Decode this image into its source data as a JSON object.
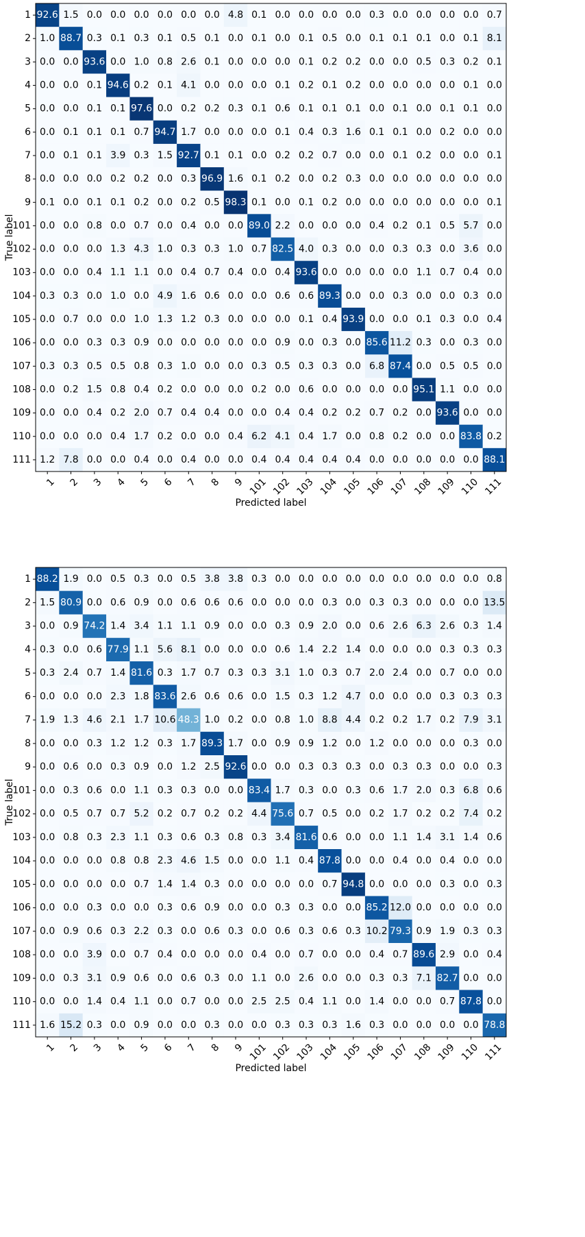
{
  "chart_data": [
    {
      "type": "heatmap",
      "title": "",
      "xlabel": "Predicted label",
      "ylabel": "True label",
      "colormap": "Blues",
      "color_range": [
        0,
        100
      ],
      "text_color_dark_cells": "#ffffff",
      "text_color_light_cells": "#000000",
      "x_categories": [
        "1",
        "2",
        "3",
        "4",
        "5",
        "6",
        "7",
        "8",
        "9",
        "101",
        "102",
        "103",
        "104",
        "105",
        "106",
        "107",
        "108",
        "109",
        "110",
        "111"
      ],
      "y_categories": [
        "1",
        "2",
        "3",
        "4",
        "5",
        "6",
        "7",
        "8",
        "9",
        "101",
        "102",
        "103",
        "104",
        "105",
        "106",
        "107",
        "108",
        "109",
        "110",
        "111"
      ],
      "values": [
        [
          "92.6",
          "1.5",
          "0.0",
          "0.0",
          "0.0",
          "0.0",
          "0.0",
          "0.0",
          "4.8",
          "0.1",
          "0.0",
          "0.0",
          "0.0",
          "0.0",
          "0.3",
          "0.0",
          "0.0",
          "0.0",
          "0.0",
          "0.7"
        ],
        [
          "1.0",
          "88.7",
          "0.3",
          "0.1",
          "0.3",
          "0.1",
          "0.5",
          "0.1",
          "0.0",
          "0.1",
          "0.0",
          "0.1",
          "0.5",
          "0.0",
          "0.1",
          "0.1",
          "0.1",
          "0.0",
          "0.1",
          "8.1"
        ],
        [
          "0.0",
          "0.0",
          "93.6",
          "0.0",
          "1.0",
          "0.8",
          "2.6",
          "0.1",
          "0.0",
          "0.0",
          "0.0",
          "0.1",
          "0.2",
          "0.2",
          "0.0",
          "0.0",
          "0.5",
          "0.3",
          "0.2",
          "0.1"
        ],
        [
          "0.0",
          "0.0",
          "0.1",
          "94.6",
          "0.2",
          "0.1",
          "4.1",
          "0.0",
          "0.0",
          "0.0",
          "0.1",
          "0.2",
          "0.1",
          "0.2",
          "0.0",
          "0.0",
          "0.0",
          "0.0",
          "0.1",
          "0.0"
        ],
        [
          "0.0",
          "0.0",
          "0.1",
          "0.1",
          "97.6",
          "0.0",
          "0.2",
          "0.2",
          "0.3",
          "0.1",
          "0.6",
          "0.1",
          "0.1",
          "0.1",
          "0.0",
          "0.1",
          "0.0",
          "0.1",
          "0.1",
          "0.0"
        ],
        [
          "0.0",
          "0.1",
          "0.1",
          "0.1",
          "0.7",
          "94.7",
          "1.7",
          "0.0",
          "0.0",
          "0.0",
          "0.1",
          "0.4",
          "0.3",
          "1.6",
          "0.1",
          "0.1",
          "0.0",
          "0.2",
          "0.0",
          "0.0"
        ],
        [
          "0.0",
          "0.1",
          "0.1",
          "3.9",
          "0.3",
          "1.5",
          "92.7",
          "0.1",
          "0.1",
          "0.0",
          "0.2",
          "0.2",
          "0.7",
          "0.0",
          "0.0",
          "0.1",
          "0.2",
          "0.0",
          "0.0",
          "0.1"
        ],
        [
          "0.0",
          "0.0",
          "0.0",
          "0.2",
          "0.2",
          "0.0",
          "0.3",
          "96.9",
          "1.6",
          "0.1",
          "0.2",
          "0.0",
          "0.2",
          "0.3",
          "0.0",
          "0.0",
          "0.0",
          "0.0",
          "0.0",
          "0.0"
        ],
        [
          "0.1",
          "0.0",
          "0.1",
          "0.1",
          "0.2",
          "0.0",
          "0.2",
          "0.5",
          "98.3",
          "0.1",
          "0.0",
          "0.1",
          "0.2",
          "0.0",
          "0.0",
          "0.0",
          "0.0",
          "0.0",
          "0.0",
          "0.1"
        ],
        [
          "0.0",
          "0.0",
          "0.8",
          "0.0",
          "0.7",
          "0.0",
          "0.4",
          "0.0",
          "0.0",
          "89.0",
          "2.2",
          "0.0",
          "0.0",
          "0.0",
          "0.4",
          "0.2",
          "0.1",
          "0.5",
          "5.7",
          "0.0"
        ],
        [
          "0.0",
          "0.0",
          "0.0",
          "1.3",
          "4.3",
          "1.0",
          "0.3",
          "0.3",
          "1.0",
          "0.7",
          "82.5",
          "4.0",
          "0.3",
          "0.0",
          "0.0",
          "0.3",
          "0.3",
          "0.0",
          "3.6",
          "0.0"
        ],
        [
          "0.0",
          "0.0",
          "0.4",
          "1.1",
          "1.1",
          "0.0",
          "0.4",
          "0.7",
          "0.4",
          "0.0",
          "0.4",
          "93.6",
          "0.0",
          "0.0",
          "0.0",
          "0.0",
          "1.1",
          "0.7",
          "0.4",
          "0.0"
        ],
        [
          "0.3",
          "0.3",
          "0.0",
          "1.0",
          "0.0",
          "4.9",
          "1.6",
          "0.6",
          "0.0",
          "0.0",
          "0.6",
          "0.6",
          "89.3",
          "0.0",
          "0.0",
          "0.3",
          "0.0",
          "0.0",
          "0.3",
          "0.0"
        ],
        [
          "0.0",
          "0.7",
          "0.0",
          "0.0",
          "1.0",
          "1.3",
          "1.2",
          "0.3",
          "0.0",
          "0.0",
          "0.0",
          "0.1",
          "0.4",
          "93.9",
          "0.0",
          "0.0",
          "0.1",
          "0.3",
          "0.0",
          "0.4"
        ],
        [
          "0.0",
          "0.0",
          "0.3",
          "0.3",
          "0.9",
          "0.0",
          "0.0",
          "0.0",
          "0.0",
          "0.0",
          "0.9",
          "0.0",
          "0.3",
          "0.0",
          "85.6",
          "11.2",
          "0.3",
          "0.0",
          "0.3",
          "0.0"
        ],
        [
          "0.3",
          "0.3",
          "0.5",
          "0.5",
          "0.8",
          "0.3",
          "1.0",
          "0.0",
          "0.0",
          "0.3",
          "0.5",
          "0.3",
          "0.3",
          "0.0",
          "6.8",
          "87.4",
          "0.0",
          "0.5",
          "0.5",
          "0.0"
        ],
        [
          "0.0",
          "0.2",
          "1.5",
          "0.8",
          "0.4",
          "0.2",
          "0.0",
          "0.0",
          "0.0",
          "0.2",
          "0.0",
          "0.6",
          "0.0",
          "0.0",
          "0.0",
          "0.0",
          "95.1",
          "1.1",
          "0.0",
          "0.0"
        ],
        [
          "0.0",
          "0.0",
          "0.4",
          "0.2",
          "2.0",
          "0.7",
          "0.4",
          "0.4",
          "0.0",
          "0.0",
          "0.4",
          "0.4",
          "0.2",
          "0.2",
          "0.7",
          "0.2",
          "0.0",
          "93.6",
          "0.0",
          "0.0"
        ],
        [
          "0.0",
          "0.0",
          "0.0",
          "0.4",
          "1.7",
          "0.2",
          "0.0",
          "0.0",
          "0.4",
          "6.2",
          "4.1",
          "0.4",
          "1.7",
          "0.0",
          "0.8",
          "0.2",
          "0.0",
          "0.0",
          "83.8",
          "0.2"
        ],
        [
          "1.2",
          "7.8",
          "0.0",
          "0.0",
          "0.4",
          "0.0",
          "0.4",
          "0.0",
          "0.0",
          "0.4",
          "0.4",
          "0.4",
          "0.4",
          "0.4",
          "0.0",
          "0.0",
          "0.0",
          "0.0",
          "0.0",
          "88.1"
        ]
      ]
    },
    {
      "type": "heatmap",
      "title": "",
      "xlabel": "Predicted label",
      "ylabel": "True label",
      "colormap": "Blues",
      "color_range": [
        0,
        100
      ],
      "text_color_dark_cells": "#ffffff",
      "text_color_light_cells": "#000000",
      "x_categories": [
        "1",
        "2",
        "3",
        "4",
        "5",
        "6",
        "7",
        "8",
        "9",
        "101",
        "102",
        "103",
        "104",
        "105",
        "106",
        "107",
        "108",
        "109",
        "110",
        "111"
      ],
      "y_categories": [
        "1",
        "2",
        "3",
        "4",
        "5",
        "6",
        "7",
        "8",
        "9",
        "101",
        "102",
        "103",
        "104",
        "105",
        "106",
        "107",
        "108",
        "109",
        "110",
        "111"
      ],
      "values": [
        [
          "88.2",
          "1.9",
          "0.0",
          "0.5",
          "0.3",
          "0.0",
          "0.5",
          "3.8",
          "3.8",
          "0.3",
          "0.0",
          "0.0",
          "0.0",
          "0.0",
          "0.0",
          "0.0",
          "0.0",
          "0.0",
          "0.0",
          "0.8"
        ],
        [
          "1.5",
          "80.9",
          "0.0",
          "0.6",
          "0.9",
          "0.0",
          "0.6",
          "0.6",
          "0.6",
          "0.0",
          "0.0",
          "0.0",
          "0.3",
          "0.0",
          "0.3",
          "0.3",
          "0.0",
          "0.0",
          "0.0",
          "13.5"
        ],
        [
          "0.0",
          "0.9",
          "74.2",
          "1.4",
          "3.4",
          "1.1",
          "1.1",
          "0.9",
          "0.0",
          "0.0",
          "0.3",
          "0.9",
          "2.0",
          "0.0",
          "0.6",
          "2.6",
          "6.3",
          "2.6",
          "0.3",
          "1.4"
        ],
        [
          "0.3",
          "0.0",
          "0.6",
          "77.9",
          "1.1",
          "5.6",
          "8.1",
          "0.0",
          "0.0",
          "0.0",
          "0.6",
          "1.4",
          "2.2",
          "1.4",
          "0.0",
          "0.0",
          "0.0",
          "0.3",
          "0.3",
          "0.3"
        ],
        [
          "0.3",
          "2.4",
          "0.7",
          "1.4",
          "81.6",
          "0.3",
          "1.7",
          "0.7",
          "0.3",
          "0.3",
          "3.1",
          "1.0",
          "0.3",
          "0.7",
          "2.0",
          "2.4",
          "0.0",
          "0.7",
          "0.0",
          "0.0"
        ],
        [
          "0.0",
          "0.0",
          "0.0",
          "2.3",
          "1.8",
          "83.6",
          "2.6",
          "0.6",
          "0.6",
          "0.0",
          "1.5",
          "0.3",
          "1.2",
          "4.7",
          "0.0",
          "0.0",
          "0.0",
          "0.3",
          "0.3",
          "0.3"
        ],
        [
          "1.9",
          "1.3",
          "4.6",
          "2.1",
          "1.7",
          "10.6",
          "48.3",
          "1.0",
          "0.2",
          "0.0",
          "0.8",
          "1.0",
          "8.8",
          "4.4",
          "0.2",
          "0.2",
          "1.7",
          "0.2",
          "7.9",
          "3.1"
        ],
        [
          "0.0",
          "0.0",
          "0.3",
          "1.2",
          "1.2",
          "0.3",
          "1.7",
          "89.3",
          "1.7",
          "0.0",
          "0.9",
          "0.9",
          "1.2",
          "0.0",
          "1.2",
          "0.0",
          "0.0",
          "0.0",
          "0.3",
          "0.0"
        ],
        [
          "0.0",
          "0.6",
          "0.0",
          "0.3",
          "0.9",
          "0.0",
          "1.2",
          "2.5",
          "92.6",
          "0.0",
          "0.0",
          "0.3",
          "0.3",
          "0.3",
          "0.0",
          "0.3",
          "0.3",
          "0.0",
          "0.0",
          "0.3"
        ],
        [
          "0.0",
          "0.3",
          "0.6",
          "0.0",
          "1.1",
          "0.3",
          "0.3",
          "0.0",
          "0.0",
          "83.4",
          "1.7",
          "0.3",
          "0.0",
          "0.3",
          "0.6",
          "1.7",
          "2.0",
          "0.3",
          "6.8",
          "0.6"
        ],
        [
          "0.0",
          "0.5",
          "0.7",
          "0.7",
          "5.2",
          "0.2",
          "0.7",
          "0.2",
          "0.2",
          "4.4",
          "75.6",
          "0.7",
          "0.5",
          "0.0",
          "0.2",
          "1.7",
          "0.2",
          "0.2",
          "7.4",
          "0.2"
        ],
        [
          "0.0",
          "0.8",
          "0.3",
          "2.3",
          "1.1",
          "0.3",
          "0.6",
          "0.3",
          "0.8",
          "0.3",
          "3.4",
          "81.6",
          "0.6",
          "0.0",
          "0.0",
          "1.1",
          "1.4",
          "3.1",
          "1.4",
          "0.6"
        ],
        [
          "0.0",
          "0.0",
          "0.0",
          "0.8",
          "0.8",
          "2.3",
          "4.6",
          "1.5",
          "0.0",
          "0.0",
          "1.1",
          "0.4",
          "87.8",
          "0.0",
          "0.0",
          "0.4",
          "0.0",
          "0.4",
          "0.0",
          "0.0"
        ],
        [
          "0.0",
          "0.0",
          "0.0",
          "0.0",
          "0.7",
          "1.4",
          "1.4",
          "0.3",
          "0.0",
          "0.0",
          "0.0",
          "0.0",
          "0.7",
          "94.8",
          "0.0",
          "0.0",
          "0.0",
          "0.3",
          "0.0",
          "0.3"
        ],
        [
          "0.0",
          "0.0",
          "0.3",
          "0.0",
          "0.0",
          "0.3",
          "0.6",
          "0.9",
          "0.0",
          "0.0",
          "0.3",
          "0.3",
          "0.0",
          "0.0",
          "85.2",
          "12.0",
          "0.0",
          "0.0",
          "0.0",
          "0.0"
        ],
        [
          "0.0",
          "0.9",
          "0.6",
          "0.3",
          "2.2",
          "0.3",
          "0.0",
          "0.6",
          "0.3",
          "0.0",
          "0.6",
          "0.3",
          "0.6",
          "0.3",
          "10.2",
          "79.3",
          "0.9",
          "1.9",
          "0.3",
          "0.3"
        ],
        [
          "0.0",
          "0.0",
          "3.9",
          "0.0",
          "0.7",
          "0.4",
          "0.0",
          "0.0",
          "0.0",
          "0.4",
          "0.0",
          "0.7",
          "0.0",
          "0.0",
          "0.4",
          "0.7",
          "89.6",
          "2.9",
          "0.0",
          "0.4"
        ],
        [
          "0.0",
          "0.3",
          "3.1",
          "0.9",
          "0.6",
          "0.0",
          "0.6",
          "0.3",
          "0.0",
          "1.1",
          "0.0",
          "2.6",
          "0.0",
          "0.0",
          "0.3",
          "0.3",
          "7.1",
          "82.7",
          "0.0",
          "0.0"
        ],
        [
          "0.0",
          "0.0",
          "1.4",
          "0.4",
          "1.1",
          "0.0",
          "0.7",
          "0.0",
          "0.0",
          "2.5",
          "2.5",
          "0.4",
          "1.1",
          "0.0",
          "1.4",
          "0.0",
          "0.0",
          "0.7",
          "87.8",
          "0.0"
        ],
        [
          "1.6",
          "15.2",
          "0.3",
          "0.0",
          "0.9",
          "0.0",
          "0.0",
          "0.3",
          "0.0",
          "0.0",
          "0.3",
          "0.3",
          "0.3",
          "1.6",
          "0.3",
          "0.0",
          "0.0",
          "0.0",
          "0.0",
          "78.8"
        ]
      ]
    }
  ]
}
